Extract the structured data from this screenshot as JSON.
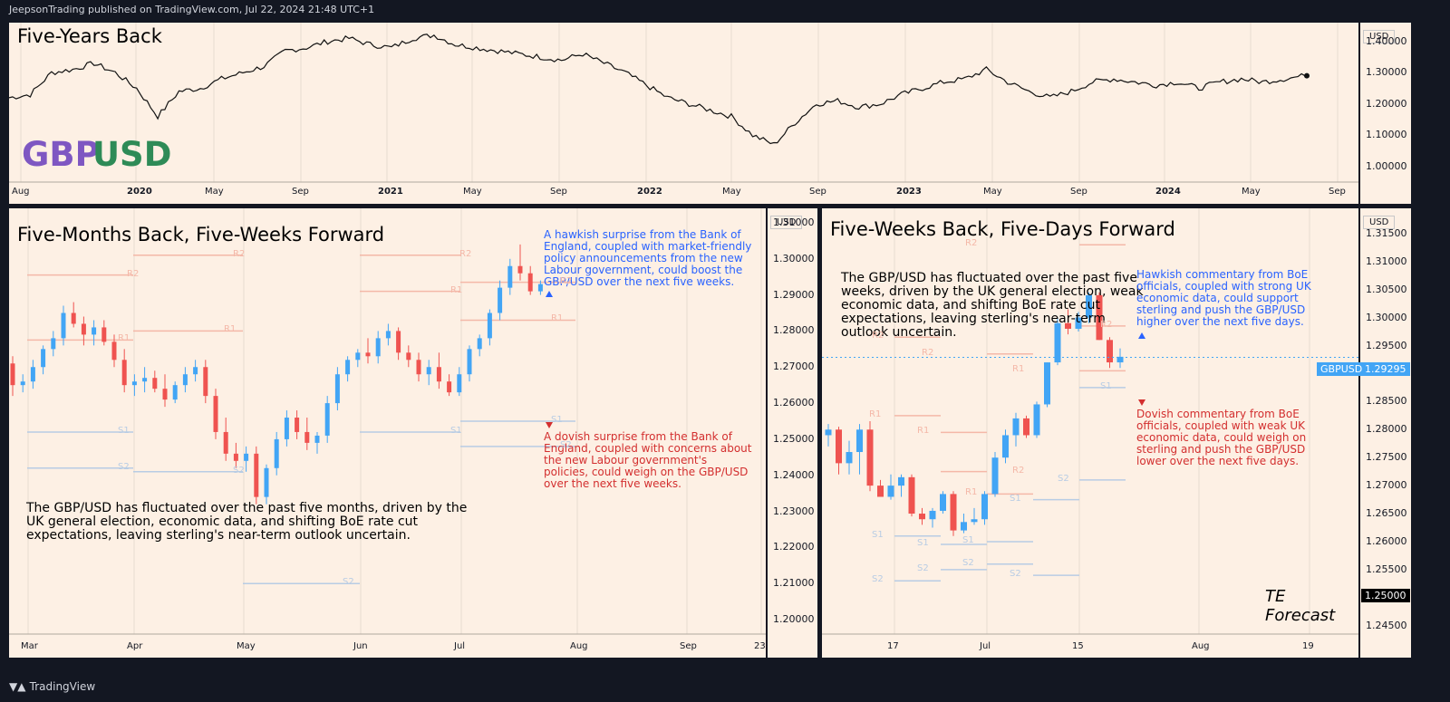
{
  "header": {
    "published": "JeepsonTrading published on TradingView.com, Jul 22, 2024 21:48 UTC+1"
  },
  "footer": {
    "brand": "TradingView"
  },
  "colors": {
    "up": "#42a5f5",
    "down": "#ef5350",
    "blue_text": "#2962ff",
    "red_text": "#d32f2f",
    "purple": "#7e57c2",
    "green": "#2e8b57"
  },
  "top_chart": {
    "title": "Five-Years Back",
    "logo_left": "GBP",
    "logo_right": "USD",
    "currency": "USD",
    "y_ticks": [
      "1.40000",
      "1.30000",
      "1.20000",
      "1.10000",
      "1.00000"
    ],
    "x_ticks": [
      {
        "label": "Aug",
        "bold": false
      },
      {
        "label": "2020",
        "bold": true
      },
      {
        "label": "May",
        "bold": false
      },
      {
        "label": "Sep",
        "bold": false
      },
      {
        "label": "2021",
        "bold": true
      },
      {
        "label": "May",
        "bold": false
      },
      {
        "label": "Sep",
        "bold": false
      },
      {
        "label": "2022",
        "bold": true
      },
      {
        "label": "May",
        "bold": false
      },
      {
        "label": "Sep",
        "bold": false
      },
      {
        "label": "2023",
        "bold": true
      },
      {
        "label": "May",
        "bold": false
      },
      {
        "label": "Sep",
        "bold": false
      },
      {
        "label": "2024",
        "bold": true
      },
      {
        "label": "May",
        "bold": false
      },
      {
        "label": "Sep",
        "bold": false
      }
    ]
  },
  "left_chart": {
    "title": "Five-Months Back, Five-Weeks Forward",
    "currency": "USD",
    "y_ticks": [
      "1.31000",
      "1.30000",
      "1.29000",
      "1.28000",
      "1.27000",
      "1.26000",
      "1.25000",
      "1.24000",
      "1.23000",
      "1.22000",
      "1.21000",
      "1.20000"
    ],
    "x_ticks": [
      {
        "label": "Mar",
        "bold": false
      },
      {
        "label": "Apr",
        "bold": false
      },
      {
        "label": "May",
        "bold": false
      },
      {
        "label": "Jun",
        "bold": false
      },
      {
        "label": "Jul",
        "bold": false
      },
      {
        "label": "Aug",
        "bold": false
      },
      {
        "label": "Sep",
        "bold": false
      },
      {
        "label": "23",
        "bold": false
      }
    ],
    "pivot_labels": [
      "R2",
      "R2",
      "R2",
      "R1",
      "R1",
      "R1",
      "R1",
      "S1",
      "S1",
      "S1",
      "S2",
      "S2",
      "S2",
      "S2",
      "R2"
    ],
    "hawkish_note": "A hawkish surprise from the Bank of England, coupled with market-friendly policy announcements from the new Labour government, could boost the GBP/USD over the next five weeks.",
    "dovish_note": "A dovish surprise from the Bank of England, coupled with concerns about the new Labour government's policies, could weigh on the GBP/USD over the next five weeks.",
    "summary": "The GBP/USD has fluctuated over the past five months, driven by the UK general election, economic data, and shifting BoE rate cut expectations, leaving sterling's near-term outlook uncertain."
  },
  "right_chart": {
    "title": "Five-Weeks Back, Five-Days Forward",
    "currency": "USD",
    "y_ticks": [
      "1.31500",
      "1.31000",
      "1.30500",
      "1.30000",
      "1.29500",
      "1.29000",
      "1.28500",
      "1.28000",
      "1.27500",
      "1.27000",
      "1.26500",
      "1.26000",
      "1.25500",
      "1.25000",
      "1.24500"
    ],
    "x_ticks": [
      {
        "label": "17",
        "bold": false
      },
      {
        "label": "Jul",
        "bold": false
      },
      {
        "label": "15",
        "bold": false
      },
      {
        "label": "Aug",
        "bold": false
      },
      {
        "label": "19",
        "bold": false
      }
    ],
    "pivot_labels": [
      "R2",
      "R2",
      "R2",
      "R2",
      "R1",
      "R1",
      "R1",
      "R1",
      "S1",
      "S1",
      "S1",
      "S1",
      "S1",
      "S2",
      "S2",
      "S2",
      "S2",
      "S2",
      "R2"
    ],
    "summary": "The GBP/USD has fluctuated over the past five weeks, driven by the UK general election, weak economic data, and shifting BoE rate cut expectations, leaving sterling's near-term outlook uncertain.",
    "hawkish_note": "Hawkish commentary from BoE officials, coupled with strong UK economic data, could support sterling and push the GBP/USD higher over the next five days.",
    "dovish_note": "Dovish commentary from BoE officials, coupled with weak UK economic data, could weigh on sterling and push the GBP/USD lower over the next five days.",
    "symbol_tag": "GBPUSD",
    "last_price": "1.29295",
    "forecast_label": "TE Forecast",
    "forecast_price": "1.25000"
  },
  "chart_data": [
    {
      "type": "line",
      "title": "Five-Years Back",
      "series": [
        {
          "name": "GBPUSD",
          "values": [
            1.22,
            1.23,
            1.3,
            1.31,
            1.33,
            1.3,
            1.25,
            1.16,
            1.24,
            1.25,
            1.28,
            1.3,
            1.32,
            1.37,
            1.38,
            1.4,
            1.41,
            1.39,
            1.38,
            1.41,
            1.42,
            1.39,
            1.38,
            1.37,
            1.36,
            1.35,
            1.34,
            1.36,
            1.33,
            1.3,
            1.26,
            1.22,
            1.2,
            1.18,
            1.16,
            1.1,
            1.07,
            1.14,
            1.2,
            1.21,
            1.19,
            1.2,
            1.23,
            1.25,
            1.27,
            1.28,
            1.31,
            1.27,
            1.24,
            1.22,
            1.24,
            1.27,
            1.28,
            1.27,
            1.26,
            1.27,
            1.25,
            1.27,
            1.28,
            1.27,
            1.28,
            1.29
          ]
        }
      ],
      "ylim": [
        0.95,
        1.46
      ],
      "x_start": "2019-07",
      "x_end": "2024-07",
      "ylabel": "USD"
    },
    {
      "type": "candlestick",
      "title": "Five-Months Back, Five-Weeks Forward",
      "ohlc": [
        [
          1.271,
          1.273,
          1.262,
          1.265
        ],
        [
          1.265,
          1.268,
          1.263,
          1.266
        ],
        [
          1.266,
          1.272,
          1.264,
          1.27
        ],
        [
          1.27,
          1.276,
          1.268,
          1.275
        ],
        [
          1.275,
          1.28,
          1.273,
          1.278
        ],
        [
          1.278,
          1.287,
          1.276,
          1.285
        ],
        [
          1.285,
          1.288,
          1.281,
          1.282
        ],
        [
          1.282,
          1.284,
          1.276,
          1.279
        ],
        [
          1.279,
          1.283,
          1.276,
          1.281
        ],
        [
          1.281,
          1.283,
          1.276,
          1.277
        ],
        [
          1.277,
          1.279,
          1.27,
          1.272
        ],
        [
          1.272,
          1.275,
          1.263,
          1.265
        ],
        [
          1.265,
          1.268,
          1.262,
          1.266
        ],
        [
          1.266,
          1.27,
          1.263,
          1.267
        ],
        [
          1.267,
          1.269,
          1.263,
          1.264
        ],
        [
          1.264,
          1.268,
          1.259,
          1.261
        ],
        [
          1.261,
          1.266,
          1.26,
          1.265
        ],
        [
          1.265,
          1.27,
          1.263,
          1.268
        ],
        [
          1.268,
          1.272,
          1.266,
          1.27
        ],
        [
          1.27,
          1.272,
          1.26,
          1.262
        ],
        [
          1.262,
          1.264,
          1.25,
          1.252
        ],
        [
          1.252,
          1.256,
          1.244,
          1.246
        ],
        [
          1.246,
          1.249,
          1.242,
          1.244
        ],
        [
          1.244,
          1.248,
          1.241,
          1.246
        ],
        [
          1.246,
          1.248,
          1.232,
          1.234
        ],
        [
          1.234,
          1.243,
          1.232,
          1.242
        ],
        [
          1.242,
          1.252,
          1.24,
          1.25
        ],
        [
          1.25,
          1.258,
          1.248,
          1.256
        ],
        [
          1.256,
          1.258,
          1.25,
          1.252
        ],
        [
          1.252,
          1.256,
          1.247,
          1.249
        ],
        [
          1.249,
          1.252,
          1.246,
          1.251
        ],
        [
          1.251,
          1.262,
          1.249,
          1.26
        ],
        [
          1.26,
          1.27,
          1.258,
          1.268
        ],
        [
          1.268,
          1.273,
          1.266,
          1.272
        ],
        [
          1.272,
          1.275,
          1.27,
          1.274
        ],
        [
          1.274,
          1.278,
          1.271,
          1.273
        ],
        [
          1.273,
          1.28,
          1.271,
          1.278
        ],
        [
          1.278,
          1.282,
          1.276,
          1.28
        ],
        [
          1.28,
          1.281,
          1.272,
          1.274
        ],
        [
          1.274,
          1.276,
          1.27,
          1.272
        ],
        [
          1.272,
          1.274,
          1.266,
          1.268
        ],
        [
          1.268,
          1.272,
          1.265,
          1.27
        ],
        [
          1.27,
          1.274,
          1.264,
          1.266
        ],
        [
          1.266,
          1.268,
          1.262,
          1.263
        ],
        [
          1.263,
          1.27,
          1.262,
          1.268
        ],
        [
          1.268,
          1.276,
          1.266,
          1.275
        ],
        [
          1.275,
          1.279,
          1.273,
          1.278
        ],
        [
          1.278,
          1.286,
          1.276,
          1.285
        ],
        [
          1.285,
          1.294,
          1.283,
          1.292
        ],
        [
          1.292,
          1.3,
          1.29,
          1.298
        ],
        [
          1.298,
          1.304,
          1.294,
          1.296
        ],
        [
          1.296,
          1.298,
          1.29,
          1.291
        ],
        [
          1.291,
          1.294,
          1.29,
          1.293
        ]
      ],
      "ylim": [
        1.196,
        1.314
      ],
      "ylabel": "USD"
    },
    {
      "type": "candlestick",
      "title": "Five-Weeks Back, Five-Days Forward",
      "ohlc": [
        [
          1.279,
          1.281,
          1.277,
          1.28
        ],
        [
          1.28,
          1.2805,
          1.272,
          1.274
        ],
        [
          1.274,
          1.278,
          1.272,
          1.276
        ],
        [
          1.276,
          1.281,
          1.272,
          1.28
        ],
        [
          1.28,
          1.2815,
          1.269,
          1.27
        ],
        [
          1.27,
          1.271,
          1.268,
          1.268
        ],
        [
          1.268,
          1.272,
          1.2675,
          1.27
        ],
        [
          1.27,
          1.272,
          1.268,
          1.2715
        ],
        [
          1.2715,
          1.272,
          1.2645,
          1.265
        ],
        [
          1.265,
          1.266,
          1.263,
          1.264
        ],
        [
          1.264,
          1.266,
          1.2625,
          1.2655
        ],
        [
          1.2655,
          1.269,
          1.265,
          1.2685
        ],
        [
          1.2685,
          1.269,
          1.261,
          1.262
        ],
        [
          1.262,
          1.265,
          1.2615,
          1.2635
        ],
        [
          1.2635,
          1.266,
          1.263,
          1.264
        ],
        [
          1.264,
          1.269,
          1.263,
          1.2685
        ],
        [
          1.2685,
          1.276,
          1.268,
          1.275
        ],
        [
          1.275,
          1.28,
          1.274,
          1.279
        ],
        [
          1.279,
          1.283,
          1.277,
          1.282
        ],
        [
          1.282,
          1.2825,
          1.2785,
          1.279
        ],
        [
          1.279,
          1.285,
          1.2785,
          1.2845
        ],
        [
          1.2845,
          1.292,
          1.284,
          1.292
        ],
        [
          1.292,
          1.3,
          1.2915,
          1.299
        ],
        [
          1.299,
          1.3015,
          1.297,
          1.298
        ],
        [
          1.298,
          1.301,
          1.2975,
          1.3
        ],
        [
          1.3,
          1.3045,
          1.299,
          1.304
        ],
        [
          1.304,
          1.3045,
          1.296,
          1.296
        ],
        [
          1.296,
          1.2965,
          1.291,
          1.292
        ],
        [
          1.292,
          1.2945,
          1.291,
          1.293
        ]
      ],
      "ylim": [
        1.2435,
        1.3195
      ],
      "ylabel": "USD"
    }
  ]
}
